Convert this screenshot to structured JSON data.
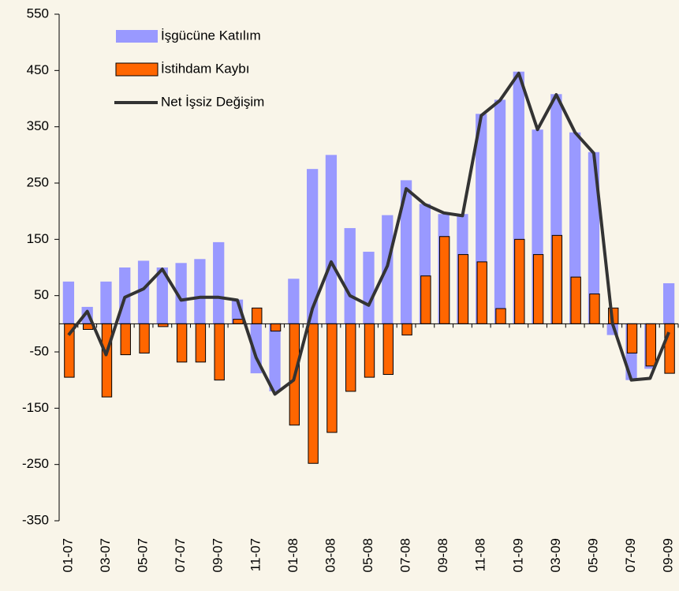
{
  "chart_data": {
    "type": "bar_line",
    "categories": [
      "01-07",
      null,
      "03-07",
      null,
      "05-07",
      null,
      "07-07",
      null,
      "09-07",
      null,
      "11-07",
      null,
      "01-08",
      null,
      "03-08",
      null,
      "05-08",
      null,
      "07-08",
      null,
      "09-08",
      null,
      "11-08",
      null,
      "01-09",
      null,
      "03-09",
      null,
      "05-09",
      null,
      "07-09",
      null,
      "09-09"
    ],
    "series": [
      {
        "name": "İşgücüne Katılım",
        "type": "bar",
        "color": "#9999ff",
        "values": [
          75,
          30,
          75,
          100,
          112,
          100,
          108,
          115,
          145,
          43,
          -88,
          -120,
          80,
          275,
          300,
          170,
          128,
          193,
          255,
          213,
          195,
          195,
          373,
          398,
          448,
          345,
          408,
          340,
          305,
          -20,
          -100,
          -80,
          72
        ]
      },
      {
        "name": "İstihdam Kaybı",
        "type": "bar",
        "color": "#ff6600",
        "values": [
          -95,
          -10,
          -130,
          -55,
          -52,
          -5,
          -68,
          -68,
          -100,
          8,
          28,
          -13,
          -180,
          -248,
          -193,
          -120,
          -95,
          -90,
          -20,
          85,
          155,
          123,
          110,
          27,
          150,
          123,
          157,
          83,
          53,
          28,
          -52,
          -75,
          -88
        ]
      },
      {
        "name": "Net İşsiz Değişim",
        "type": "line",
        "color": "#333333",
        "values": [
          -20,
          22,
          -55,
          47,
          62,
          97,
          42,
          47,
          47,
          42,
          -60,
          -125,
          -100,
          27,
          110,
          50,
          33,
          103,
          240,
          212,
          197,
          192,
          370,
          397,
          445,
          345,
          407,
          340,
          303,
          0,
          -100,
          -97,
          -15
        ]
      }
    ],
    "ylim": [
      -350,
      550
    ],
    "yticks": [
      -350,
      -250,
      -150,
      -50,
      50,
      150,
      250,
      350,
      450,
      550
    ],
    "legend": "top-left"
  }
}
